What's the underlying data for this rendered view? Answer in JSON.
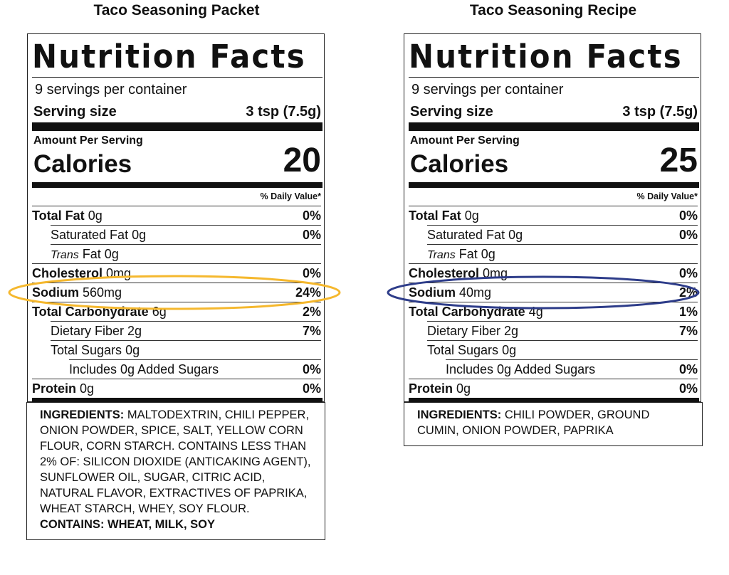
{
  "labels": [
    {
      "heading": "Taco Seasoning Packet",
      "title": "Nutrition Facts",
      "servings": "9 servings per container",
      "serving_size_label": "Serving size",
      "serving_size": "3 tsp (7.5g)",
      "amount_per_serving": "Amount Per Serving",
      "calories_label": "Calories",
      "calories": 20,
      "daily_value_header": "% Daily Value*",
      "rows": [
        {
          "label": "Total Fat",
          "amount": "0g",
          "dv": "0%"
        },
        {
          "label": "Saturated Fat",
          "amount": "0g",
          "dv": "0%"
        },
        {
          "italic": "Trans",
          "label": "Fat",
          "amount": "0g"
        },
        {
          "label": "Cholesterol",
          "amount": "0mg",
          "dv": "0%"
        },
        {
          "label": "Sodium",
          "amount": "560mg",
          "dv": "24%"
        },
        {
          "label": "Total Carbohydrate",
          "amount": "6g",
          "dv": "2%"
        },
        {
          "label": "Dietary Fiber",
          "amount": "2g",
          "dv": "7%"
        },
        {
          "label": "Total Sugars",
          "amount": "0g"
        },
        {
          "label": "Includes 0g Added Sugars",
          "dv": "0%"
        },
        {
          "label": "Protein",
          "amount": "0g",
          "dv": "0%"
        }
      ],
      "ingredients_label": "INGREDIENTS:",
      "ingredients": "MALTODEXTRIN, CHILI PEPPER, ONION POWDER, SPICE, SALT, YELLOW CORN FLOUR, CORN STARCH. CONTAINS LESS THAN 2% OF: SILICON DIOXIDE (ANTICAKING AGENT), SUNFLOWER OIL, SUGAR, CITRIC ACID, NATURAL FLAVOR, EXTRACTIVES OF PAPRIKA, WHEAT STARCH, WHEY, SOY FLOUR.",
      "contains": "CONTAINS: WHEAT, MILK, SOY"
    },
    {
      "heading": "Taco Seasoning Recipe",
      "title": "Nutrition Facts",
      "servings": "9 servings per container",
      "serving_size_label": "Serving size",
      "serving_size": "3 tsp (7.5g)",
      "amount_per_serving": "Amount Per Serving",
      "calories_label": "Calories",
      "calories": 25,
      "daily_value_header": "% Daily Value*",
      "rows": [
        {
          "label": "Total Fat",
          "amount": "0g",
          "dv": "0%"
        },
        {
          "label": "Saturated Fat",
          "amount": "0g",
          "dv": "0%"
        },
        {
          "italic": "Trans",
          "label": "Fat",
          "amount": "0g"
        },
        {
          "label": "Cholesterol",
          "amount": "0mg",
          "dv": "0%"
        },
        {
          "label": "Sodium",
          "amount": "40mg",
          "dv": "2%"
        },
        {
          "label": "Total Carbohydrate",
          "amount": "4g",
          "dv": "1%"
        },
        {
          "label": "Dietary Fiber",
          "amount": "2g",
          "dv": "7%"
        },
        {
          "label": "Total Sugars",
          "amount": "0g"
        },
        {
          "label": "Includes 0g Added Sugars",
          "dv": "0%"
        },
        {
          "label": "Protein",
          "amount": "0g",
          "dv": "0%"
        }
      ],
      "ingredients_label": "INGREDIENTS:",
      "ingredients": "CHILI POWDER, GROUND CUMIN, ONION POWDER, PAPRIKA"
    }
  ]
}
